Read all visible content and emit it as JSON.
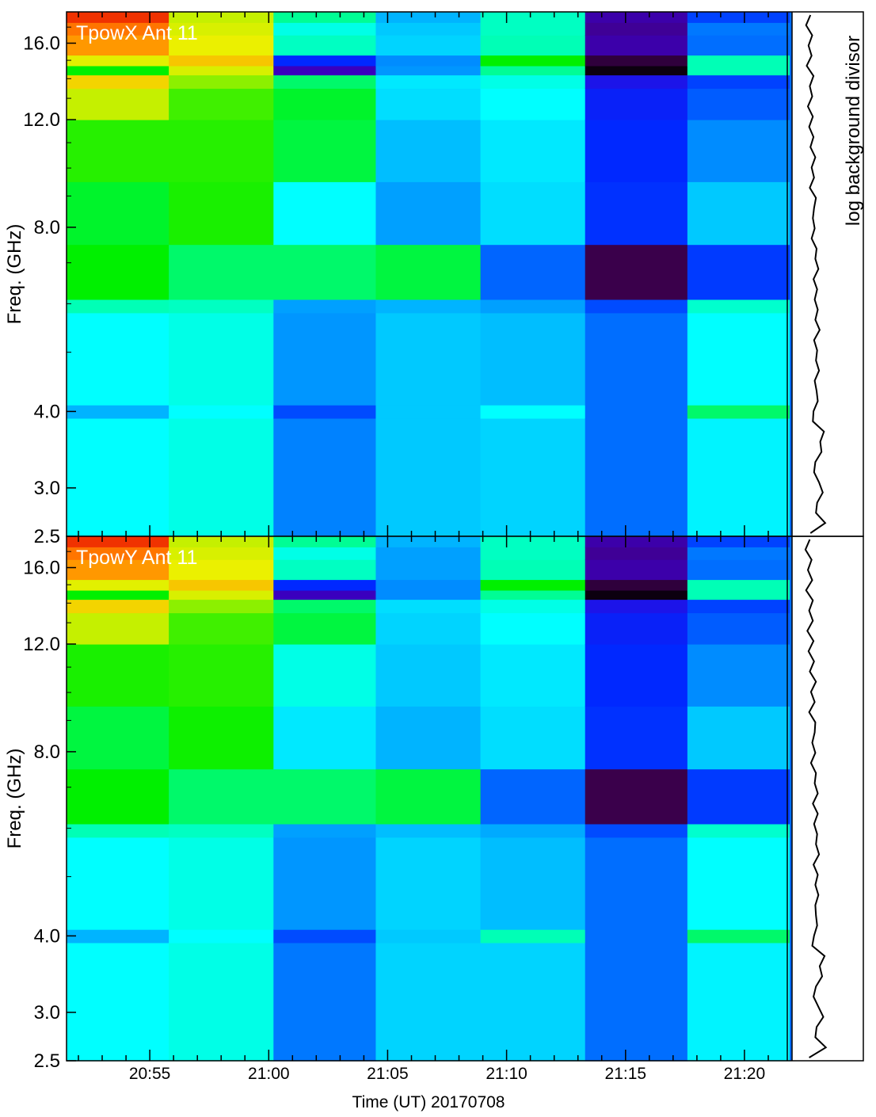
{
  "chart_data": {
    "type": "heatmap",
    "colormap": "rainbow",
    "x_axis_label": "Time (UT) 20170708",
    "x_ticks": [
      "20:55",
      "21:00",
      "21:05",
      "21:10",
      "21:15",
      "21:20"
    ],
    "x_tick_minutes": [
      55,
      60,
      65,
      70,
      75,
      80
    ],
    "x_range_minutes": [
      51.5,
      82.0
    ],
    "time_segments_minutes": [
      [
        51.5,
        55.8
      ],
      [
        55.8,
        60.2
      ],
      [
        60.2,
        64.5
      ],
      [
        64.5,
        68.9
      ],
      [
        68.9,
        73.3
      ],
      [
        73.3,
        77.6
      ],
      [
        77.6,
        81.9
      ]
    ],
    "y_axis_label": "Freq. (GHz)",
    "y_scale": "log",
    "y_range": [
      2.5,
      18.0
    ],
    "y_ticks": [
      "2.5",
      "3.0",
      "4.0",
      "8.0",
      "12.0",
      "16.0"
    ],
    "y_tick_values": [
      2.5,
      3.0,
      4.0,
      8.0,
      12.0,
      16.0
    ],
    "side_panel_label": "log background divisor",
    "panels": [
      {
        "label": "TpowX Ant 11",
        "segment_levels": [
          [
            [
              2.5,
              0.4
            ],
            [
              3.9,
              0.33
            ],
            [
              4.1,
              0.4
            ],
            [
              5.8,
              0.46
            ],
            [
              6.1,
              0.55
            ],
            [
              7.5,
              0.53
            ],
            [
              9.5,
              0.58
            ],
            [
              12.0,
              0.72
            ],
            [
              13.5,
              0.8
            ],
            [
              14.2,
              0.55
            ],
            [
              14.7,
              0.75
            ],
            [
              15.3,
              0.88
            ],
            [
              16.5,
              0.92
            ],
            [
              17.3,
              0.97
            ]
          ],
          [
            [
              2.5,
              0.42
            ],
            [
              3.9,
              0.4
            ],
            [
              4.1,
              0.42
            ],
            [
              5.8,
              0.45
            ],
            [
              6.1,
              0.5
            ],
            [
              7.5,
              0.57
            ],
            [
              9.5,
              0.58
            ],
            [
              12.0,
              0.6
            ],
            [
              13.5,
              0.66
            ],
            [
              14.2,
              0.74
            ],
            [
              14.7,
              0.82
            ],
            [
              15.3,
              0.76
            ],
            [
              16.5,
              0.74
            ],
            [
              17.3,
              0.72
            ]
          ],
          [
            [
              2.5,
              0.28
            ],
            [
              3.9,
              0.22
            ],
            [
              4.1,
              0.3
            ],
            [
              5.8,
              0.31
            ],
            [
              6.1,
              0.5
            ],
            [
              7.5,
              0.4
            ],
            [
              9.5,
              0.52
            ],
            [
              12.0,
              0.53
            ],
            [
              13.5,
              0.5
            ],
            [
              14.2,
              0.11
            ],
            [
              14.7,
              0.18
            ],
            [
              15.3,
              0.45
            ],
            [
              16.5,
              0.42
            ],
            [
              17.3,
              0.48
            ]
          ],
          [
            [
              2.5,
              0.35
            ],
            [
              3.9,
              0.35
            ],
            [
              4.1,
              0.35
            ],
            [
              5.8,
              0.33
            ],
            [
              6.1,
              0.52
            ],
            [
              7.5,
              0.31
            ],
            [
              9.5,
              0.34
            ],
            [
              12.0,
              0.37
            ],
            [
              13.5,
              0.38
            ],
            [
              14.2,
              0.3
            ],
            [
              14.7,
              0.29
            ],
            [
              15.3,
              0.36
            ],
            [
              16.5,
              0.35
            ],
            [
              17.3,
              0.33
            ]
          ],
          [
            [
              2.5,
              0.36
            ],
            [
              3.9,
              0.4
            ],
            [
              4.1,
              0.34
            ],
            [
              5.8,
              0.31
            ],
            [
              6.1,
              0.25
            ],
            [
              7.5,
              0.37
            ],
            [
              9.5,
              0.38
            ],
            [
              12.0,
              0.4
            ],
            [
              13.5,
              0.42
            ],
            [
              14.2,
              0.48
            ],
            [
              14.7,
              0.55
            ],
            [
              15.3,
              0.46
            ],
            [
              16.5,
              0.45
            ],
            [
              17.3,
              0.45
            ]
          ],
          [
            [
              2.5,
              0.26
            ],
            [
              3.9,
              0.26
            ],
            [
              4.1,
              0.26
            ],
            [
              5.8,
              0.22
            ],
            [
              6.1,
              0.05
            ],
            [
              7.5,
              0.19
            ],
            [
              9.5,
              0.18
            ],
            [
              12.0,
              0.17
            ],
            [
              13.5,
              0.15
            ],
            [
              14.2,
              0.01
            ],
            [
              14.7,
              0.04
            ],
            [
              15.3,
              0.1
            ],
            [
              16.5,
              0.09
            ],
            [
              17.3,
              0.1
            ]
          ],
          [
            [
              2.5,
              0.39
            ],
            [
              3.9,
              0.5
            ],
            [
              4.1,
              0.4
            ],
            [
              5.8,
              0.44
            ],
            [
              6.1,
              0.2
            ],
            [
              7.5,
              0.35
            ],
            [
              9.5,
              0.29
            ],
            [
              12.0,
              0.24
            ],
            [
              13.5,
              0.21
            ],
            [
              14.2,
              0.46
            ],
            [
              14.7,
              0.46
            ],
            [
              15.3,
              0.26
            ],
            [
              16.5,
              0.27
            ],
            [
              17.3,
              0.21
            ]
          ]
        ],
        "background_curve": [
          0.22,
          0.46,
          0.31,
          0.33,
          0.42,
          0.36,
          0.28,
          0.3,
          0.4,
          0.38,
          0.44,
          0.26,
          0.27,
          0.34,
          0.32,
          0.29,
          0.36,
          0.31,
          0.33,
          0.28,
          0.37,
          0.3,
          0.34,
          0.29,
          0.33,
          0.27,
          0.35,
          0.3,
          0.32,
          0.24,
          0.29,
          0.26,
          0.28,
          0.31,
          0.21,
          0.28,
          0.24,
          0.3,
          0.22,
          0.27,
          0.2,
          0.26,
          0.18,
          0.25,
          0.21,
          0.27,
          0.16,
          0.24,
          0.19,
          0.25,
          0.15,
          0.22
        ]
      },
      {
        "label": "TpowY Ant 11",
        "segment_levels": [
          [
            [
              2.5,
              0.4
            ],
            [
              3.9,
              0.33
            ],
            [
              4.1,
              0.4
            ],
            [
              5.8,
              0.46
            ],
            [
              6.1,
              0.55
            ],
            [
              7.5,
              0.52
            ],
            [
              9.5,
              0.57
            ],
            [
              12.0,
              0.72
            ],
            [
              13.5,
              0.8
            ],
            [
              14.2,
              0.55
            ],
            [
              14.7,
              0.75
            ],
            [
              15.3,
              0.88
            ],
            [
              16.5,
              0.92
            ],
            [
              17.3,
              0.97
            ]
          ],
          [
            [
              2.5,
              0.42
            ],
            [
              3.9,
              0.4
            ],
            [
              4.1,
              0.42
            ],
            [
              5.8,
              0.45
            ],
            [
              6.1,
              0.5
            ],
            [
              7.5,
              0.56
            ],
            [
              9.5,
              0.58
            ],
            [
              12.0,
              0.6
            ],
            [
              13.5,
              0.66
            ],
            [
              14.2,
              0.74
            ],
            [
              14.7,
              0.82
            ],
            [
              15.3,
              0.76
            ],
            [
              16.5,
              0.74
            ],
            [
              17.3,
              0.72
            ]
          ],
          [
            [
              2.5,
              0.27
            ],
            [
              3.9,
              0.22
            ],
            [
              4.1,
              0.3
            ],
            [
              5.8,
              0.31
            ],
            [
              6.1,
              0.5
            ],
            [
              7.5,
              0.38
            ],
            [
              9.5,
              0.42
            ],
            [
              12.0,
              0.52
            ],
            [
              13.5,
              0.5
            ],
            [
              14.2,
              0.11
            ],
            [
              14.7,
              0.18
            ],
            [
              15.3,
              0.45
            ],
            [
              16.5,
              0.42
            ],
            [
              17.3,
              0.48
            ]
          ],
          [
            [
              2.5,
              0.36
            ],
            [
              3.9,
              0.35
            ],
            [
              4.1,
              0.36
            ],
            [
              5.8,
              0.34
            ],
            [
              6.1,
              0.52
            ],
            [
              7.5,
              0.33
            ],
            [
              9.5,
              0.35
            ],
            [
              12.0,
              0.36
            ],
            [
              13.5,
              0.37
            ],
            [
              14.2,
              0.29
            ],
            [
              14.7,
              0.29
            ],
            [
              15.3,
              0.31
            ],
            [
              16.5,
              0.31
            ],
            [
              17.3,
              0.33
            ]
          ],
          [
            [
              2.5,
              0.36
            ],
            [
              3.9,
              0.46
            ],
            [
              4.1,
              0.34
            ],
            [
              5.8,
              0.32
            ],
            [
              6.1,
              0.25
            ],
            [
              7.5,
              0.37
            ],
            [
              9.5,
              0.38
            ],
            [
              12.0,
              0.4
            ],
            [
              13.5,
              0.42
            ],
            [
              14.2,
              0.48
            ],
            [
              14.7,
              0.55
            ],
            [
              15.3,
              0.46
            ],
            [
              16.5,
              0.45
            ],
            [
              17.3,
              0.45
            ]
          ],
          [
            [
              2.5,
              0.26
            ],
            [
              3.9,
              0.26
            ],
            [
              4.1,
              0.26
            ],
            [
              5.8,
              0.22
            ],
            [
              6.1,
              0.05
            ],
            [
              7.5,
              0.19
            ],
            [
              9.5,
              0.18
            ],
            [
              12.0,
              0.17
            ],
            [
              13.5,
              0.15
            ],
            [
              14.2,
              0.01
            ],
            [
              14.7,
              0.04
            ],
            [
              15.3,
              0.1
            ],
            [
              16.5,
              0.09
            ],
            [
              17.3,
              0.1
            ]
          ],
          [
            [
              2.5,
              0.39
            ],
            [
              3.9,
              0.5
            ],
            [
              4.1,
              0.4
            ],
            [
              5.8,
              0.44
            ],
            [
              6.1,
              0.2
            ],
            [
              7.5,
              0.35
            ],
            [
              9.5,
              0.29
            ],
            [
              12.0,
              0.24
            ],
            [
              13.5,
              0.21
            ],
            [
              14.2,
              0.46
            ],
            [
              14.7,
              0.46
            ],
            [
              15.3,
              0.26
            ],
            [
              16.5,
              0.27
            ],
            [
              17.3,
              0.21
            ]
          ]
        ],
        "background_curve": [
          0.2,
          0.47,
          0.3,
          0.32,
          0.43,
          0.35,
          0.27,
          0.31,
          0.41,
          0.37,
          0.45,
          0.25,
          0.28,
          0.33,
          0.31,
          0.3,
          0.35,
          0.3,
          0.34,
          0.27,
          0.36,
          0.31,
          0.33,
          0.28,
          0.34,
          0.26,
          0.34,
          0.29,
          0.31,
          0.23,
          0.3,
          0.25,
          0.29,
          0.3,
          0.2,
          0.29,
          0.23,
          0.31,
          0.21,
          0.28,
          0.19,
          0.27,
          0.17,
          0.26,
          0.2,
          0.26,
          0.15,
          0.25,
          0.18,
          0.24,
          0.14,
          0.21
        ]
      }
    ]
  }
}
